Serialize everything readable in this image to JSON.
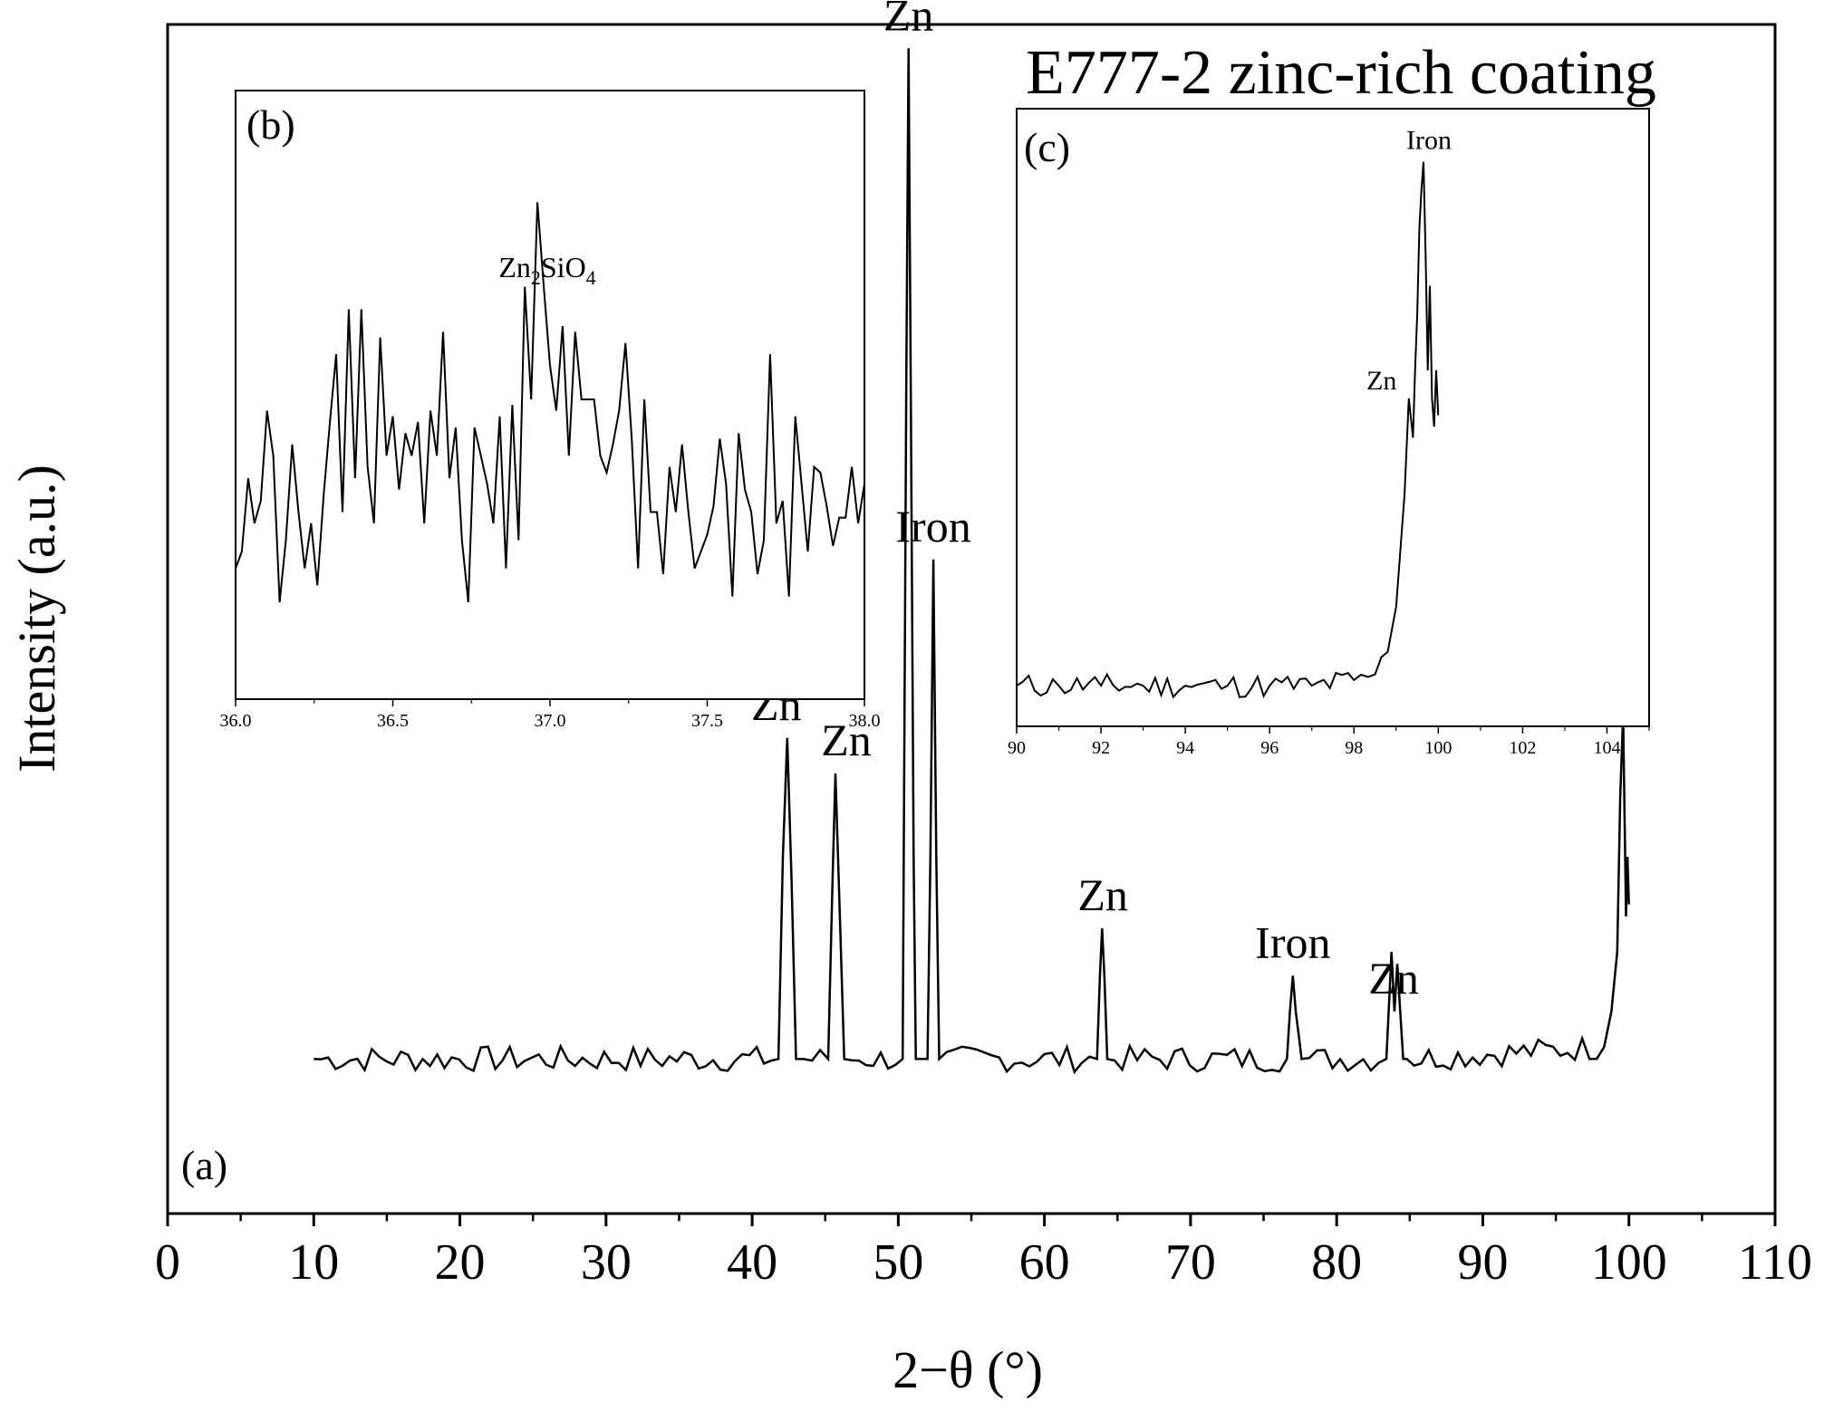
{
  "figure": {
    "title": "E777-2 zinc-rich coating",
    "xlabel": "2−θ (°)",
    "ylabel": "Intensity (a.u.)",
    "panel_a": "(a)",
    "panel_b": "(b)",
    "panel_c": "(c)"
  },
  "chart_data": [
    {
      "panel": "(a)",
      "type": "line",
      "title": "E777-2 zinc-rich coating",
      "xlabel": "2−θ (°)",
      "ylabel": "Intensity (a.u.)",
      "xlim": [
        0,
        110
      ],
      "ylim": [
        0,
        100
      ],
      "xticks": [
        "0",
        "10",
        "20",
        "30",
        "40",
        "50",
        "60",
        "70",
        "80",
        "90",
        "100",
        "110"
      ],
      "y_ticks_shown": false,
      "baseline": 13,
      "series": [
        {
          "x": [
            10,
            41.8,
            42.1,
            42.4,
            42.7,
            43,
            45.2,
            45.5,
            45.7,
            46,
            46.3,
            50.3,
            50.55,
            50.7,
            50.85,
            51.05,
            51.2,
            52.0,
            52.2,
            52.4,
            52.6,
            52.8,
            63.6,
            63.8,
            63.95,
            64.1,
            64.3,
            76.6,
            76.8,
            77.0,
            77.2,
            77.4,
            77.6,
            83.4,
            83.6,
            83.75,
            83.95,
            84.15,
            84.35,
            84.55,
            84.8,
            98.3,
            98.8,
            99.2,
            99.4,
            99.6,
            99.8,
            99.9,
            100
          ],
          "y": [
            13,
            13,
            30,
            40,
            28,
            13,
            13,
            28,
            37,
            25,
            13,
            13,
            70,
            98,
            70,
            30,
            13,
            13,
            30,
            55,
            30,
            13,
            13,
            20,
            24,
            20,
            13,
            13,
            17,
            20,
            17,
            15,
            13,
            13,
            18,
            22,
            17,
            21,
            17,
            13,
            13,
            14,
            17,
            22,
            35,
            42,
            25,
            30,
            26
          ]
        }
      ],
      "annotations": [
        {
          "text": "Zn",
          "x": 42.4
        },
        {
          "text": "Zn",
          "x": 45.7
        },
        {
          "text": "Zn",
          "x": 50.7
        },
        {
          "text": "Iron",
          "x": 52.4
        },
        {
          "text": "Zn",
          "x": 64.0
        },
        {
          "text": "Iron",
          "x": 77.0
        },
        {
          "text": "Zn",
          "x": 83.9
        }
      ]
    },
    {
      "panel": "(b)",
      "type": "line",
      "xlim": [
        36.0,
        38.0
      ],
      "xticks": [
        "36.0",
        "36.5",
        "37.0",
        "37.5",
        "38.0"
      ],
      "ylim": [
        0,
        100
      ],
      "series": [
        {
          "x": [
            36.0,
            36.02,
            36.04,
            36.06,
            36.08,
            36.1,
            36.12,
            36.14,
            36.16,
            36.18,
            36.2,
            36.22,
            36.24,
            36.26,
            36.28,
            36.3,
            36.32,
            36.34,
            36.36,
            36.38,
            36.4,
            36.42,
            36.44,
            36.46,
            36.48,
            36.5,
            36.52,
            36.54,
            36.56,
            36.58,
            36.6,
            36.62,
            36.64,
            36.66,
            36.68,
            36.7,
            36.72,
            36.74,
            36.76,
            36.78,
            36.8,
            36.82,
            36.84,
            36.86,
            36.88,
            36.9,
            36.92,
            36.94,
            36.96,
            36.98,
            37.0,
            37.02,
            37.04,
            37.06,
            37.08,
            37.1,
            37.12,
            37.14,
            37.16,
            37.18,
            37.2,
            37.22,
            37.24,
            37.26,
            37.28,
            37.3,
            37.32,
            37.34,
            37.36,
            37.38,
            37.4,
            37.42,
            37.44,
            37.46,
            37.48,
            37.5,
            37.52,
            37.54,
            37.56,
            37.58,
            37.6,
            37.62,
            37.64,
            37.66,
            37.68,
            37.7,
            37.72,
            37.74,
            37.76,
            37.78,
            37.8,
            37.82,
            37.84,
            37.86,
            37.88,
            37.9,
            37.92,
            37.94,
            37.96,
            37.98,
            38.0
          ],
          "y": [
            20,
            23,
            36,
            28,
            32,
            48,
            40,
            14,
            25,
            42,
            30,
            20,
            28,
            17,
            33,
            46,
            58,
            30,
            66,
            36,
            66,
            38,
            28,
            61,
            40,
            47,
            34,
            44,
            40,
            46,
            28,
            48,
            40,
            62,
            36,
            45,
            25,
            14,
            45,
            40,
            35,
            28,
            47,
            20,
            49,
            25,
            70,
            50,
            85,
            70,
            56,
            48,
            63,
            40,
            62,
            50,
            50,
            50,
            40,
            37,
            42,
            48,
            60,
            43,
            20,
            50,
            30,
            30,
            19,
            38,
            30,
            42,
            30,
            20,
            23,
            26,
            31,
            43,
            35,
            15,
            44,
            34,
            30,
            19,
            25,
            58,
            28,
            32,
            15,
            47,
            35,
            23,
            38,
            37,
            31,
            24,
            29,
            29,
            38,
            28,
            35
          ]
        }
      ],
      "annotations": [
        {
          "text": "Zn",
          "sub": "2",
          "text2": "SiO",
          "sub2": "4",
          "x": 37.0
        }
      ]
    },
    {
      "panel": "(c)",
      "type": "line",
      "xlim": [
        90,
        105
      ],
      "xticks": [
        "90",
        "92",
        "94",
        "96",
        "98",
        "100",
        "102",
        "104"
      ],
      "ylim": [
        0,
        100
      ],
      "series": [
        {
          "x": [
            90,
            91,
            92,
            93,
            94,
            95,
            96,
            97,
            98,
            98.5,
            98.8,
            99.0,
            99.2,
            99.3,
            99.4,
            99.45,
            99.5,
            99.55,
            99.6,
            99.65,
            99.7,
            99.75,
            99.8,
            99.85,
            99.9,
            99.95,
            100
          ],
          "y": [
            4,
            4,
            4,
            4,
            4,
            4,
            4,
            4,
            5,
            6,
            10,
            18,
            38,
            55,
            48,
            60,
            70,
            85,
            92,
            97,
            80,
            60,
            75,
            55,
            50,
            60,
            52
          ]
        }
      ],
      "annotations": [
        {
          "text": "Iron",
          "x": 99.65
        },
        {
          "text": "Zn",
          "x": 99.3
        }
      ]
    }
  ]
}
